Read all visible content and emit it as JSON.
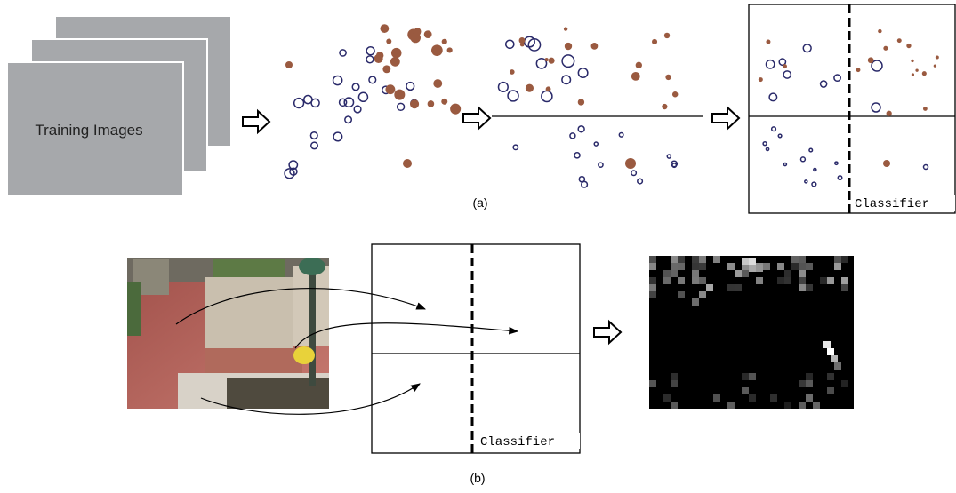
{
  "panel_a": {
    "training_label": "Training Images",
    "classifier_label": "Classifier",
    "caption": "(a)"
  },
  "panel_b": {
    "classifier_label": "Classifier",
    "caption": "(b)"
  }
}
